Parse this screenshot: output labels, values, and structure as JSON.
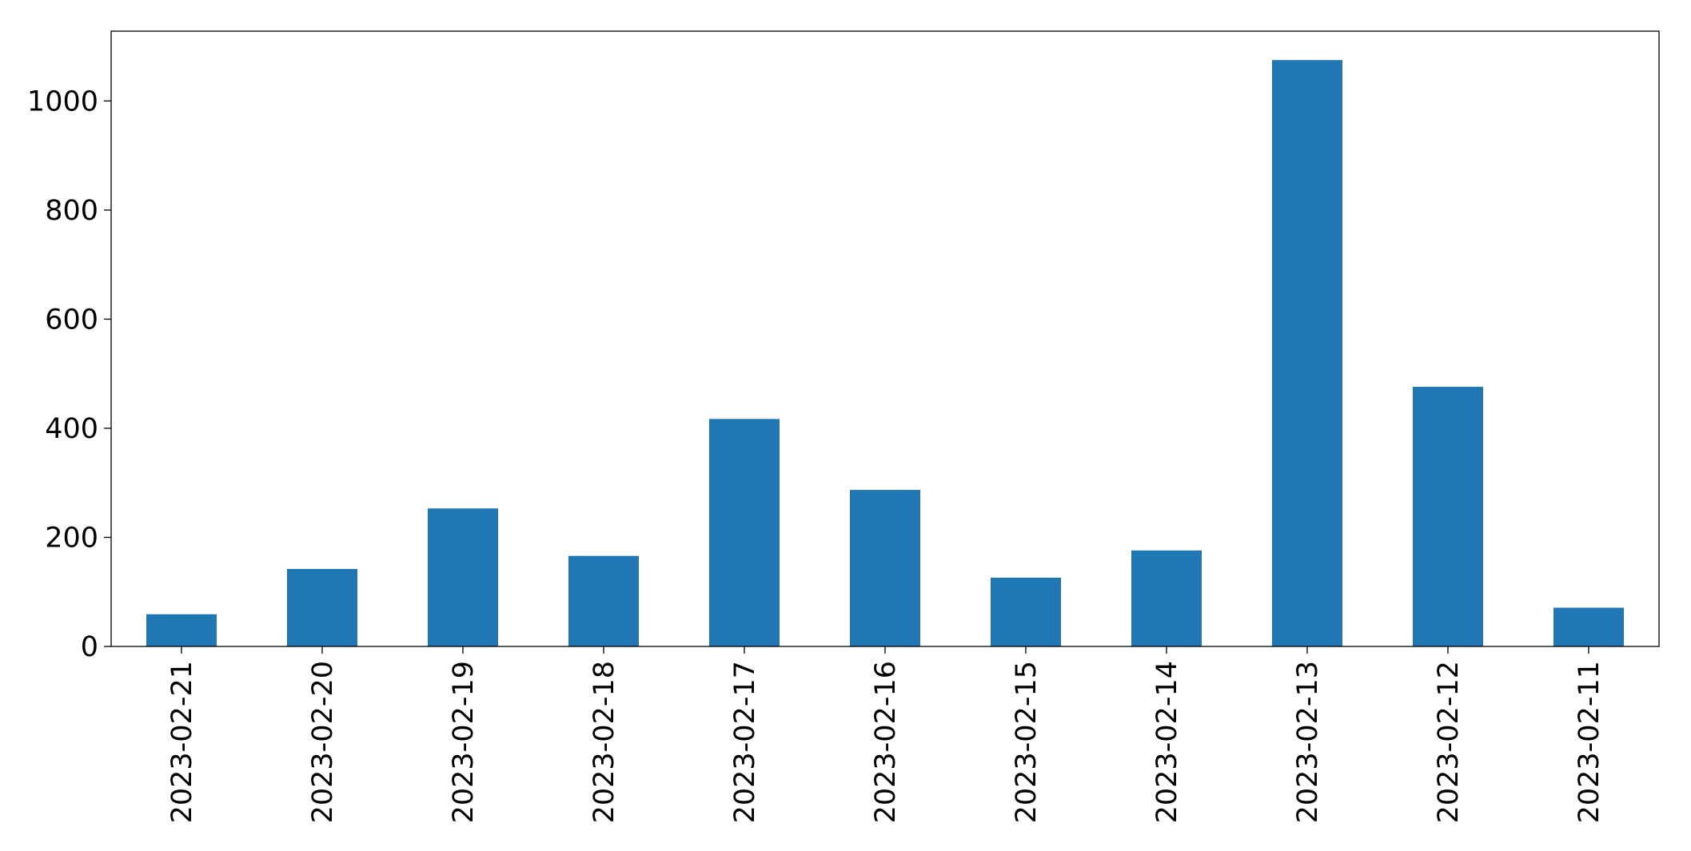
{
  "chart_data": {
    "type": "bar",
    "categories": [
      "2023-02-21",
      "2023-02-20",
      "2023-02-19",
      "2023-02-18",
      "2023-02-17",
      "2023-02-16",
      "2023-02-15",
      "2023-02-14",
      "2023-02-13",
      "2023-02-12",
      "2023-02-11"
    ],
    "values": [
      59,
      142,
      253,
      166,
      417,
      287,
      126,
      176,
      1075,
      476,
      71
    ],
    "color": "#1f77b4",
    "ylim": [
      0,
      1128
    ],
    "yticks": [
      0,
      200,
      400,
      600,
      800,
      1000
    ],
    "grid": false
  }
}
